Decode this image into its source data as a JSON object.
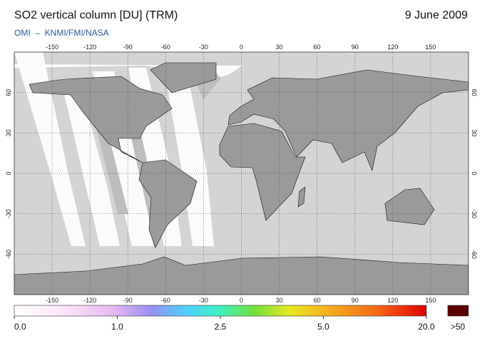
{
  "header": {
    "title": "SO2 vertical column [DU] (TRM)",
    "date": "9 June 2009",
    "source": "OMI  –  KNMI/FMI/NASA"
  },
  "map": {
    "xlim": [
      -180,
      180
    ],
    "ylim": [
      -90,
      90
    ],
    "lon_ticks": [
      -150,
      -120,
      -90,
      -60,
      -30,
      0,
      30,
      60,
      90,
      120,
      150
    ],
    "lat_ticks": [
      60,
      30,
      0,
      -30,
      -60
    ],
    "grid": true
  },
  "colorbar": {
    "ticks": [
      {
        "value": 0,
        "label": "0.0"
      },
      {
        "value": 1,
        "label": "1.0"
      },
      {
        "value": 2.5,
        "label": "2.5"
      },
      {
        "value": 5,
        "label": "5.0"
      },
      {
        "value": 20,
        "label": "20.0"
      }
    ],
    "overflow_label": ">50"
  }
}
